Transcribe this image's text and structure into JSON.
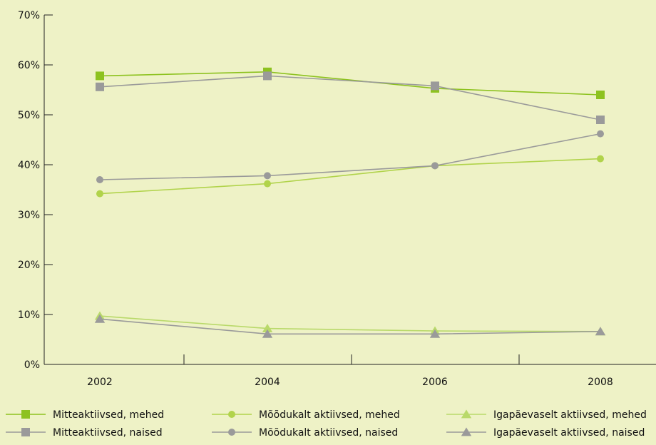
{
  "chart_data": {
    "type": "line",
    "x": [
      "2002",
      "2004",
      "2006",
      "2008"
    ],
    "ylim": [
      0,
      70
    ],
    "yticks": [
      "0%",
      "10%",
      "20%",
      "30%",
      "40%",
      "50%",
      "60%",
      "70%"
    ],
    "grid": false,
    "legend_position": "bottom",
    "series": [
      {
        "name": "Mitteaktiivsed, mehed",
        "values": [
          57.8,
          58.6,
          55.3,
          54.0
        ],
        "color": "#8dc21f",
        "marker": "square"
      },
      {
        "name": "Mitteaktiivsed, naised",
        "values": [
          55.6,
          57.8,
          55.8,
          49.0
        ],
        "color": "#9a9a9a",
        "marker": "square"
      },
      {
        "name": "Mõõdukalt aktiivsed, mehed",
        "values": [
          34.2,
          36.2,
          39.8,
          41.2
        ],
        "color": "#b1d34b",
        "marker": "circle"
      },
      {
        "name": "Mõõdukalt aktiivsed, naised",
        "values": [
          37.0,
          37.8,
          39.8,
          46.2
        ],
        "color": "#9a9a9a",
        "marker": "circle"
      },
      {
        "name": "Igapäevaselt aktiivsed, mehed",
        "values": [
          9.7,
          7.2,
          6.7,
          6.6
        ],
        "color": "#b9d96a",
        "marker": "triangle"
      },
      {
        "name": "Igapäevaselt aktiivsed, naised",
        "values": [
          9.1,
          6.1,
          6.1,
          6.6
        ],
        "color": "#9a9a9a",
        "marker": "triangle"
      }
    ]
  }
}
